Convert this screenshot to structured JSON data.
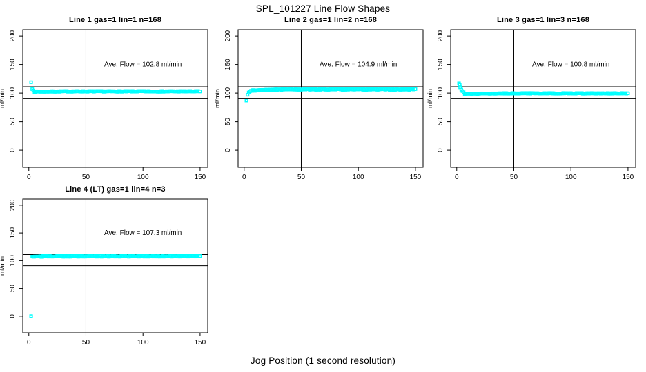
{
  "chart_data": {
    "type": "scatter",
    "title": "SPL_101227  Line Flow Shapes",
    "xlabel": "Jog Position (1 second resolution)",
    "ylabel": "ml/min",
    "xlim": [
      -5.3,
      156.7
    ],
    "ylim": [
      -30,
      211
    ],
    "xticks": [
      0,
      50,
      100,
      150
    ],
    "yticks": [
      0,
      50,
      100,
      150,
      200
    ],
    "grid": false,
    "legend": null,
    "point_color": "#00ffff",
    "axis_color": "#000000",
    "background_color": "#ffffff",
    "reference_lines": {
      "vline_x": 50,
      "hline_upper": 111,
      "hline_lower": 91
    },
    "ave_text_pos": {
      "x": 100,
      "y": 150
    },
    "panels": [
      {
        "title": "Line 1 gas=1 lin=1 n=168",
        "ave_flow": 102.8,
        "ave_flow_text": "Ave. Flow =  102.8  ml/min",
        "n": 168,
        "lead_points": [
          [
            2,
            119
          ],
          [
            3,
            107
          ],
          [
            4,
            104.5
          ]
        ],
        "steady": {
          "x_start": 5,
          "x_end": 150,
          "value": 103,
          "ramp": 0.5,
          "noise": 0.9
        }
      },
      {
        "title": "Line 2 gas=1 lin=2 n=168",
        "ave_flow": 104.9,
        "ave_flow_text": "Ave. Flow =  104.9  ml/min",
        "n": 168,
        "lead_points": [
          [
            2,
            87
          ],
          [
            3,
            97
          ],
          [
            4,
            101
          ],
          [
            5,
            103
          ],
          [
            6,
            104
          ]
        ],
        "steady": {
          "x_start": 7,
          "x_end": 150,
          "value": 106.5,
          "ramp": 2,
          "noise": 1.1
        }
      },
      {
        "title": "Line 3 gas=1 lin=3 n=168",
        "ave_flow": 100.8,
        "ave_flow_text": "Ave. Flow =  100.8  ml/min",
        "n": 168,
        "lead_points": [
          [
            2,
            117
          ],
          [
            2.6,
            114.5
          ],
          [
            3,
            110
          ],
          [
            4,
            106
          ],
          [
            5,
            103.5
          ],
          [
            6,
            101.5
          ]
        ],
        "steady": {
          "x_start": 7,
          "x_end": 150,
          "value": 99.5,
          "ramp": 1,
          "noise": 0.9
        }
      },
      {
        "title": "Line 4 (LT) gas=1 lin=4 n=3",
        "ave_flow": 107.3,
        "ave_flow_text": "Ave. Flow =  107.3  ml/min",
        "n": 3,
        "lead_points": [
          [
            2,
            0
          ]
        ],
        "steady": {
          "x_start": 3,
          "x_end": 150,
          "value": 108,
          "ramp": 0.5,
          "noise": 1.4
        }
      }
    ]
  }
}
